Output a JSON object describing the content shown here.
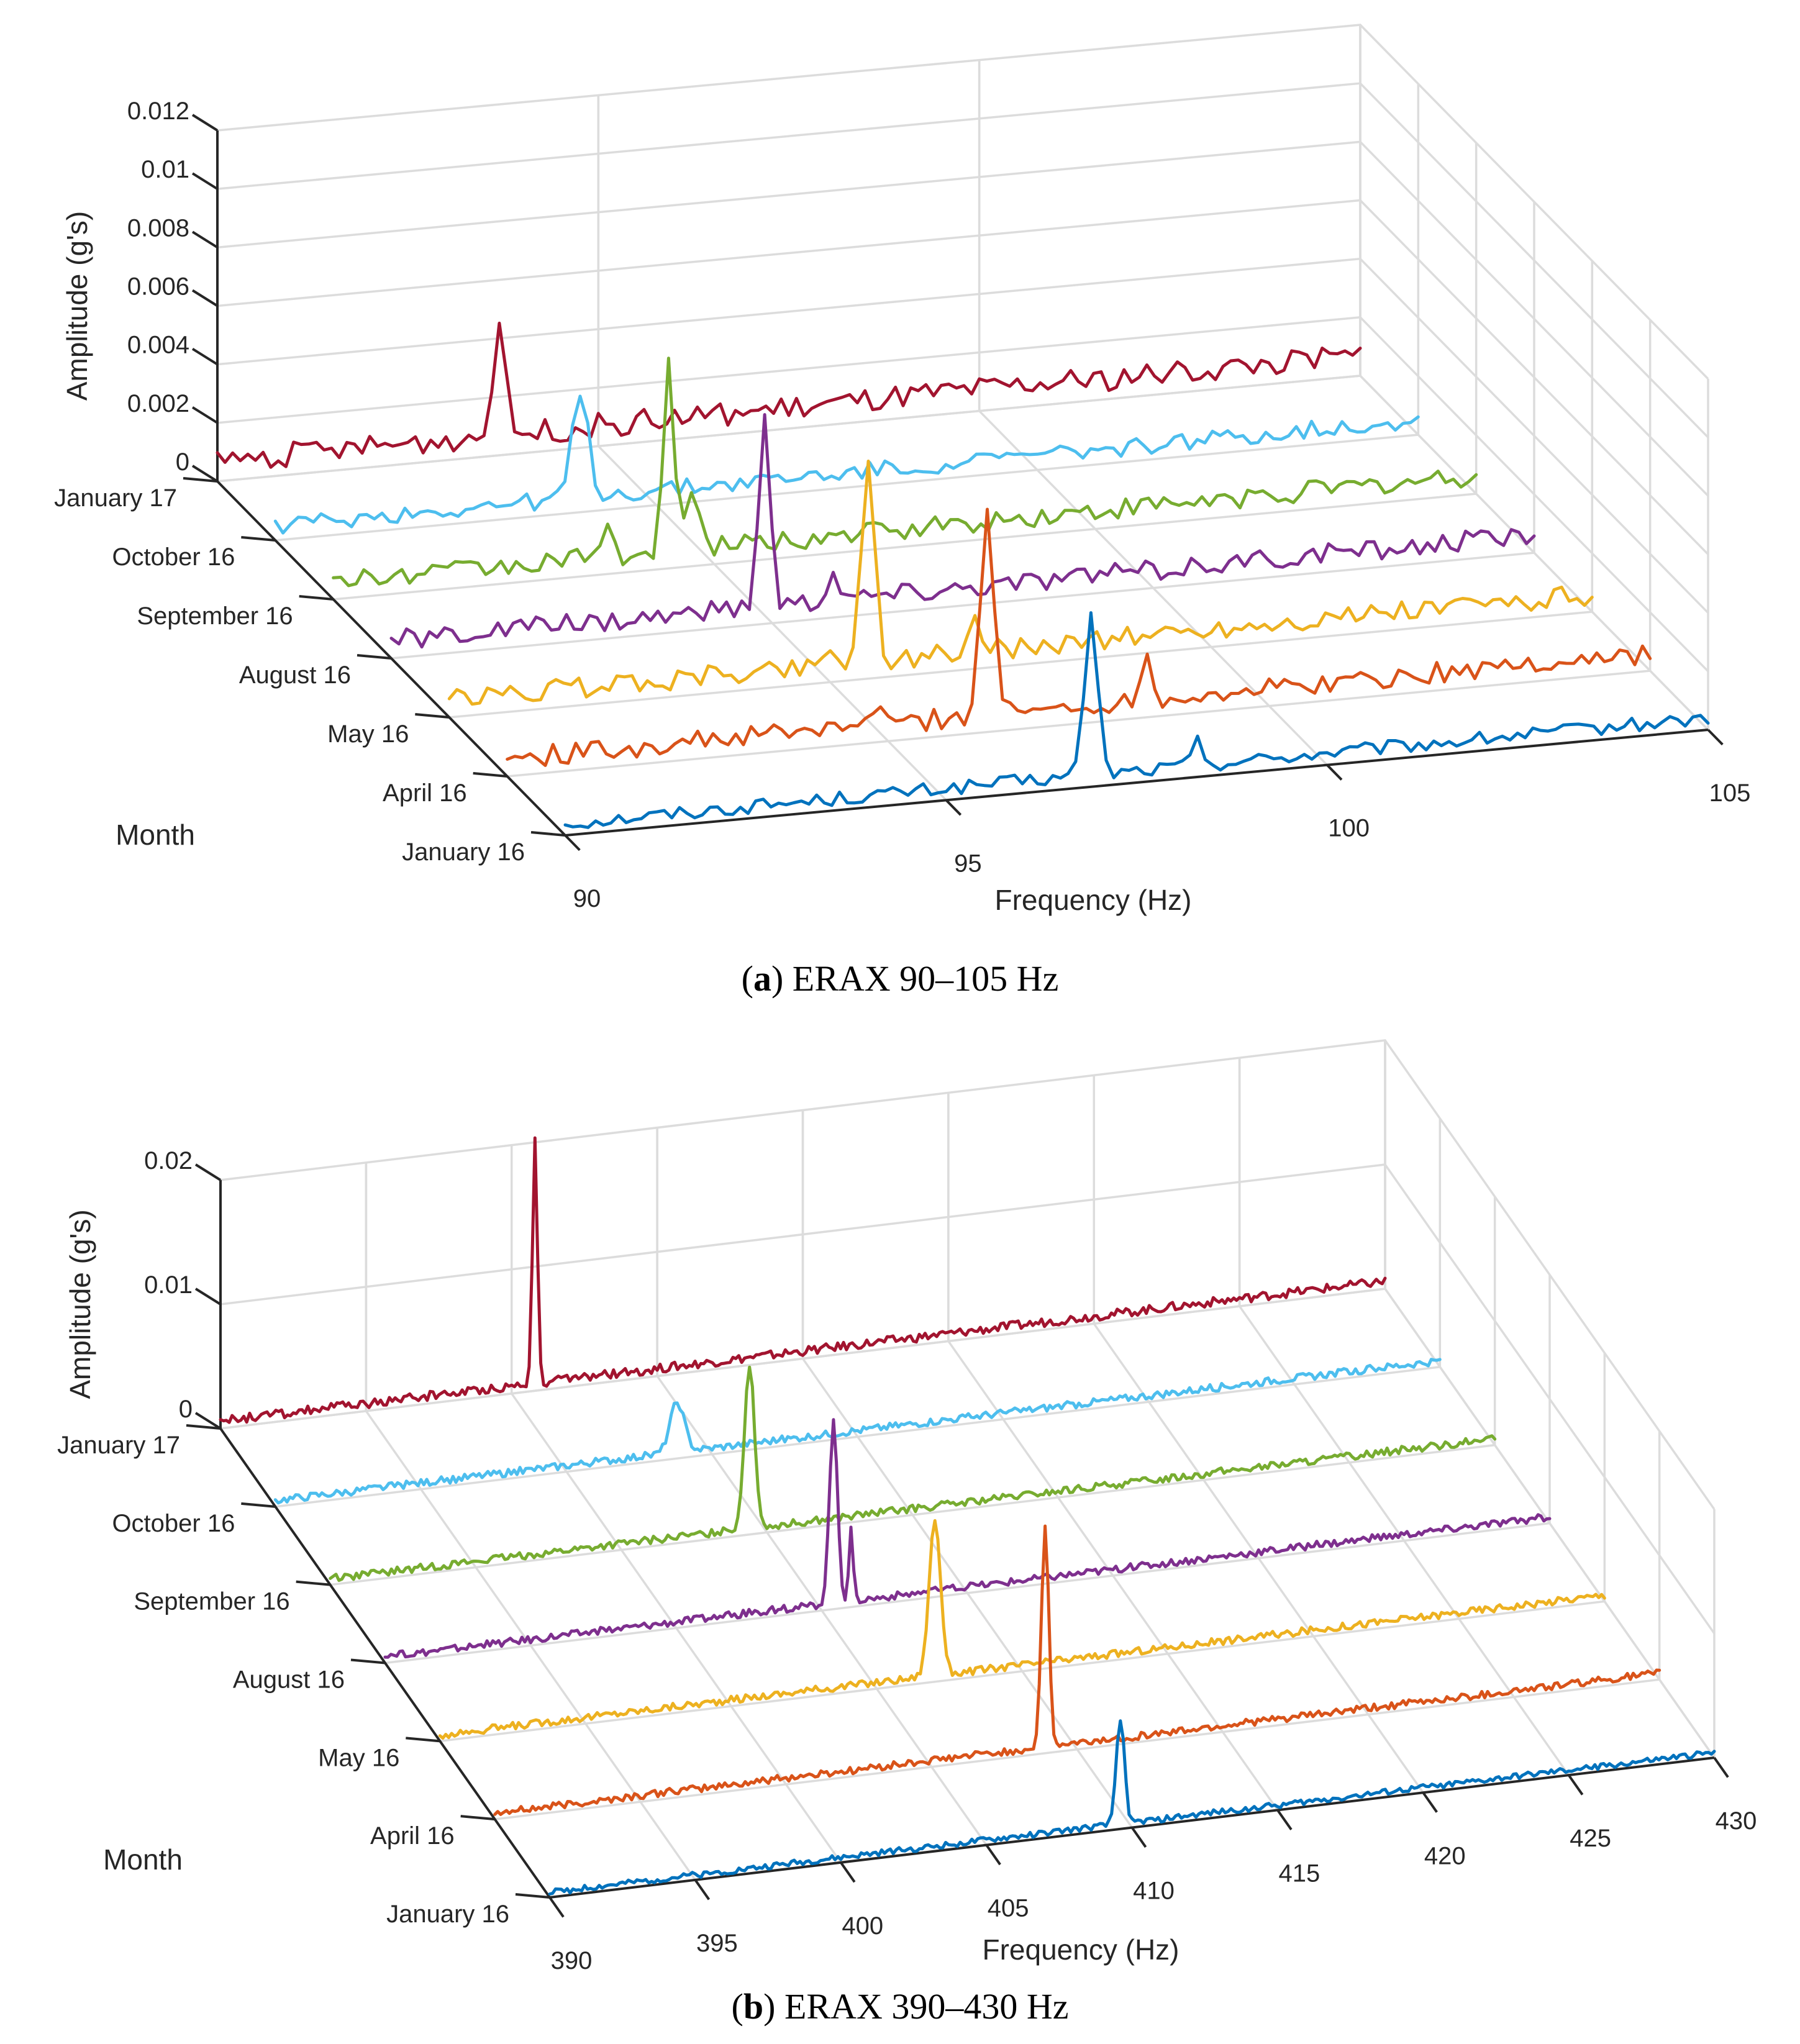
{
  "chart_data": [
    {
      "type": "line",
      "panel": "a",
      "caption_letter": "a",
      "caption_text": "ERAX 90–105 Hz",
      "xlabel": "Frequency (Hz)",
      "ylabel": "Month",
      "zlabel": "Amplitude (g's)",
      "xlim": [
        90,
        105
      ],
      "zlim": [
        0,
        0.012
      ],
      "x_ticks": [
        "90",
        "95",
        "100",
        "105"
      ],
      "z_ticks": [
        "0",
        "0.002",
        "0.004",
        "0.006",
        "0.008",
        "0.01",
        "0.012"
      ],
      "categories": [
        "January 16",
        "April 16",
        "May 16",
        "August 16",
        "September 16",
        "October 16",
        "January 17"
      ],
      "series": [
        {
          "name": "January 16",
          "color": "#0072BD",
          "peaks": [
            [
              96.9,
              0.0055,
              0.12
            ],
            [
              98.3,
              0.0008,
              0.1
            ]
          ],
          "base": 0.0004
        },
        {
          "name": "April 16",
          "color": "#D95319",
          "peaks": [
            [
              96.3,
              0.0072,
              0.12
            ],
            [
              98.4,
              0.0016,
              0.1
            ],
            [
              94.8,
              0.0005,
              0.15
            ]
          ],
          "base": 0.0006
        },
        {
          "name": "May 16",
          "color": "#EDB120",
          "peaks": [
            [
              95.5,
              0.0068,
              0.12
            ],
            [
              96.9,
              0.0012,
              0.1
            ],
            [
              95.0,
              0.0007,
              0.1
            ]
          ],
          "base": 0.0006
        },
        {
          "name": "August 16",
          "color": "#7E2F8E",
          "peaks": [
            [
              94.9,
              0.0068,
              0.1
            ],
            [
              95.8,
              0.0009,
              0.12
            ]
          ],
          "base": 0.0006
        },
        {
          "name": "September 16",
          "color": "#77AC30",
          "peaks": [
            [
              94.4,
              0.0065,
              0.1
            ],
            [
              94.7,
              0.0018,
              0.12
            ],
            [
              93.6,
              0.0008,
              0.1
            ]
          ],
          "base": 0.0006
        },
        {
          "name": "October 16",
          "color": "#4DBEEE",
          "peaks": [
            [
              94.0,
              0.0035,
              0.15
            ]
          ],
          "base": 0.0005
        },
        {
          "name": "January 17",
          "color": "#A2142F",
          "peaks": [
            [
              93.7,
              0.0042,
              0.1
            ]
          ],
          "base": 0.0007
        }
      ]
    },
    {
      "type": "line",
      "panel": "b",
      "caption_letter": "b",
      "caption_text": "ERAX 390–430 Hz",
      "xlabel": "Frequency (Hz)",
      "ylabel": "Month",
      "zlabel": "Amplitude (g's)",
      "xlim": [
        390,
        430
      ],
      "zlim": [
        0,
        0.02
      ],
      "x_ticks": [
        "390",
        "395",
        "400",
        "405",
        "410",
        "415",
        "420",
        "425",
        "430"
      ],
      "z_ticks": [
        "0",
        "0.01",
        "0.02"
      ],
      "categories": [
        "January 16",
        "April 16",
        "May 16",
        "August 16",
        "September 16",
        "October 16",
        "January 17"
      ],
      "series": [
        {
          "name": "January 16",
          "color": "#0072BD",
          "peaks": [
            [
              409.6,
              0.0085,
              0.2
            ]
          ],
          "base": 0.0004
        },
        {
          "name": "April 16",
          "color": "#D95319",
          "peaks": [
            [
              408.9,
              0.0175,
              0.18
            ]
          ],
          "base": 0.0005
        },
        {
          "name": "May 16",
          "color": "#EDB120",
          "peaks": [
            [
              407.0,
              0.0125,
              0.28
            ]
          ],
          "base": 0.0005
        },
        {
          "name": "August 16",
          "color": "#7E2F8E",
          "peaks": [
            [
              405.4,
              0.0145,
              0.2
            ],
            [
              406.0,
              0.006,
              0.1
            ]
          ],
          "base": 0.0005
        },
        {
          "name": "September 16",
          "color": "#77AC30",
          "peaks": [
            [
              404.4,
              0.013,
              0.25
            ]
          ],
          "base": 0.0005
        },
        {
          "name": "October 16",
          "color": "#4DBEEE",
          "peaks": [
            [
              403.8,
              0.004,
              0.35
            ]
          ],
          "base": 0.0005
        },
        {
          "name": "January 17",
          "color": "#A2142F",
          "peaks": [
            [
              400.8,
              0.02,
              0.12
            ]
          ],
          "base": 0.0006
        }
      ]
    }
  ]
}
